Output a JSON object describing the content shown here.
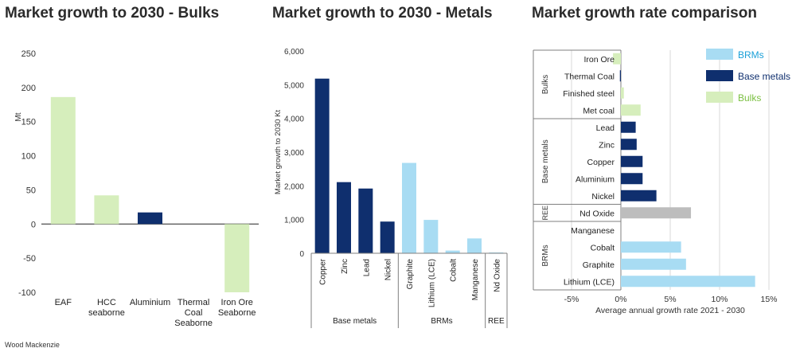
{
  "colors": {
    "brms": "#a8dcf3",
    "base": "#0f2f6e",
    "bulks": "#d6eebc",
    "ree": "#bdbdbd",
    "axis": "#7f7f7f",
    "grid": "#d9d9d9"
  },
  "source": "Wood Mackenzie",
  "chart_data": [
    {
      "id": "bulks",
      "type": "bar",
      "title": "Market growth to 2030 - Bulks",
      "ylabel": "Mt",
      "ylim": [
        -100,
        250
      ],
      "yticks": [
        -100,
        -50,
        0,
        50,
        100,
        150,
        200,
        250
      ],
      "categories": [
        "EAF",
        "HCC\nseaborne",
        "Aluminium",
        "Thermal\nCoal\nSeaborne",
        "Iron Ore\nSeaborne"
      ],
      "values": [
        186,
        42,
        17,
        0,
        -100
      ],
      "groups": [
        "bulks",
        "bulks",
        "base",
        "bulks",
        "bulks"
      ]
    },
    {
      "id": "metals",
      "type": "bar",
      "title": "Market growth to 2030 - Metals",
      "ylabel": "Market growth to 2030 Kt",
      "ylim": [
        0,
        6000
      ],
      "yticks": [
        0,
        1000,
        2000,
        3000,
        4000,
        5000,
        6000
      ],
      "ytick_labels": [
        "0",
        "1,000",
        "2,000",
        "3,000",
        "4,000",
        "5,000",
        "6,000"
      ],
      "categories": [
        "Copper",
        "Zinc",
        "Lead",
        "Nickel",
        "Graphite",
        "Lithium (LCE)",
        "Cobalt",
        "Manganese",
        "Nd Oxide"
      ],
      "values": [
        5180,
        2110,
        1920,
        940,
        2680,
        990,
        80,
        440,
        20
      ],
      "groups": [
        "base",
        "base",
        "base",
        "base",
        "brms",
        "brms",
        "brms",
        "brms",
        "brms"
      ],
      "category_groups": [
        {
          "label": "Base metals",
          "start": 0,
          "end": 3
        },
        {
          "label": "BRMs",
          "start": 4,
          "end": 7
        },
        {
          "label": "REE",
          "start": 8,
          "end": 8
        }
      ]
    },
    {
      "id": "comparison",
      "type": "bar",
      "orientation": "horizontal",
      "title": "Market growth rate comparison",
      "xlabel": "Average annual growth rate 2021 - 2030",
      "xlim": [
        -5,
        15
      ],
      "xticks": [
        -5,
        0,
        5,
        10,
        15
      ],
      "xtick_labels": [
        "-5%",
        "0%",
        "5%",
        "10%",
        "15%"
      ],
      "categories": [
        "Iron Ore",
        "Thermal Coal",
        "Finished steel",
        "Met coal",
        "Lead",
        "Zinc",
        "Copper",
        "Aluminium",
        "Nickel",
        "Nd Oxide",
        "Manganese",
        "Cobalt",
        "Graphite",
        "Lithium (LCE)"
      ],
      "values": [
        -0.8,
        -0.1,
        0.3,
        2.0,
        1.5,
        1.6,
        2.2,
        2.2,
        3.6,
        7.1,
        0.0,
        6.1,
        6.6,
        13.6
      ],
      "groups": [
        "bulks",
        "base",
        "bulks",
        "bulks",
        "base",
        "base",
        "base",
        "base",
        "base",
        "ree",
        "brms",
        "brms",
        "brms",
        "brms"
      ],
      "category_groups": [
        {
          "label": "Bulks",
          "start": 0,
          "end": 3
        },
        {
          "label": "Base metals",
          "start": 4,
          "end": 8
        },
        {
          "label": "REE",
          "start": 9,
          "end": 9
        },
        {
          "label": "BRMs",
          "start": 10,
          "end": 13
        }
      ],
      "legend": [
        {
          "label": "BRMs",
          "group": "brms"
        },
        {
          "label": "Base metals",
          "group": "base"
        },
        {
          "label": "Bulks",
          "group": "bulks"
        }
      ],
      "legend_position": "top-right"
    }
  ]
}
